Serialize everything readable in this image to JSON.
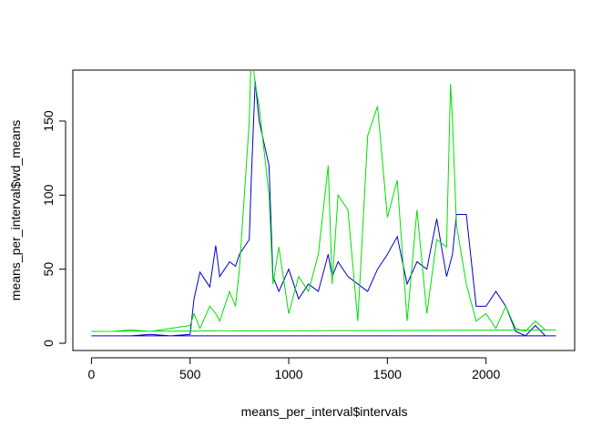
{
  "chart_data": {
    "type": "line",
    "xlabel": "means_per_interval$intervals",
    "ylabel": "means_per_interval$wd_means",
    "x": [
      0,
      100,
      200,
      300,
      400,
      500,
      520,
      550,
      600,
      630,
      650,
      700,
      730,
      750,
      800,
      810,
      830,
      850,
      900,
      920,
      950,
      1000,
      1050,
      1100,
      1150,
      1200,
      1220,
      1250,
      1300,
      1350,
      1400,
      1450,
      1500,
      1550,
      1600,
      1650,
      1700,
      1750,
      1800,
      1820,
      1830,
      1850,
      1900,
      1950,
      2000,
      2050,
      2100,
      2150,
      2200,
      2250,
      2300,
      2355,
      0
    ],
    "series": [
      {
        "color": "#0000cc",
        "values": [
          5,
          5,
          5,
          6,
          5,
          6,
          30,
          48,
          38,
          66,
          45,
          55,
          52,
          60,
          70,
          110,
          177,
          150,
          120,
          45,
          35,
          50,
          30,
          40,
          35,
          60,
          45,
          55,
          45,
          40,
          35,
          50,
          60,
          72,
          40,
          55,
          50,
          84,
          45,
          55,
          60,
          87,
          87,
          25,
          25,
          35,
          25,
          8,
          5,
          12,
          5,
          5,
          5
        ]
      },
      {
        "color": "#00e000",
        "values": [
          8,
          8,
          9,
          8,
          10,
          12,
          20,
          10,
          25,
          20,
          15,
          35,
          25,
          50,
          150,
          200,
          175,
          160,
          100,
          40,
          65,
          20,
          45,
          35,
          60,
          120,
          40,
          100,
          90,
          15,
          140,
          160,
          85,
          110,
          15,
          90,
          20,
          70,
          65,
          175,
          150,
          80,
          40,
          15,
          20,
          10,
          25,
          10,
          8,
          15,
          9,
          9,
          8
        ]
      }
    ],
    "xlim": [
      -94.2,
      2449.2
    ],
    "xticks": [
      0,
      500,
      1000,
      1500,
      2000
    ],
    "ylim": [
      -4.9,
      184.4
    ],
    "yticks": [
      0,
      50,
      100,
      150
    ]
  }
}
